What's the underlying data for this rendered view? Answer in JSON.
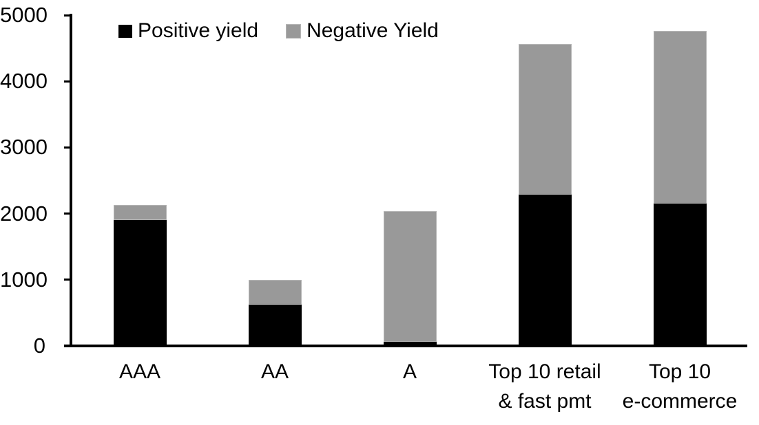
{
  "chart_data": {
    "type": "bar",
    "stacked": true,
    "title": "",
    "categories": [
      "AAA",
      "AA",
      "A",
      "Top 10 retail\n& fast pmt",
      "Top 10\ne-commerce"
    ],
    "series": [
      {
        "name": "Positive yield",
        "color": "#000000",
        "values": [
          1900,
          620,
          60,
          2290,
          2150
        ]
      },
      {
        "name": "Negative Yield",
        "color": "#999999",
        "values": [
          230,
          380,
          1980,
          2270,
          2610
        ]
      }
    ],
    "totals": [
      2130,
      1000,
      2040,
      4560,
      4760
    ],
    "xlabel": "",
    "ylabel": "",
    "ylim": [
      0,
      5000
    ],
    "yticks": [
      0,
      1000,
      2000,
      3000,
      4000,
      5000
    ],
    "grid": false,
    "legend_position": "top",
    "axis_color": "#000000",
    "background_color": "#ffffff"
  }
}
